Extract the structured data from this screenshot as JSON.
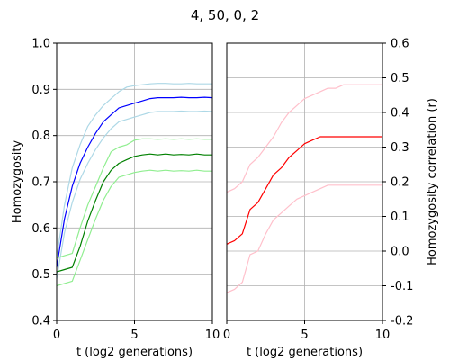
{
  "title": "4, 50, 0, 2",
  "chart_data": [
    {
      "type": "line",
      "xlabel": "t (log2 generations)",
      "ylabel": "Homozygosity",
      "xlim": [
        0,
        10
      ],
      "ylim": [
        0.4,
        1.0
      ],
      "x_ticks": [
        0,
        5,
        10
      ],
      "y_ticks": [
        0.4,
        0.5,
        0.6,
        0.7,
        0.8,
        0.9,
        1.0
      ],
      "grid": true,
      "series": [
        {
          "color": "#add8e6",
          "x": [
            0,
            0.5,
            1,
            1.5,
            2,
            2.5,
            3,
            3.5,
            4,
            4.5,
            5,
            5.5,
            6,
            6.5,
            7,
            7.5,
            8,
            8.5,
            9,
            9.5,
            10
          ],
          "y": [
            0.535,
            0.65,
            0.73,
            0.78,
            0.82,
            0.845,
            0.865,
            0.88,
            0.895,
            0.905,
            0.908,
            0.91,
            0.912,
            0.913,
            0.913,
            0.912,
            0.912,
            0.913,
            0.912,
            0.912,
            0.912
          ]
        },
        {
          "color": "#0000ff",
          "x": [
            0,
            0.5,
            1,
            1.5,
            2,
            2.5,
            3,
            3.5,
            4,
            4.5,
            5,
            5.5,
            6,
            6.5,
            7,
            7.5,
            8,
            8.5,
            9,
            9.5,
            10
          ],
          "y": [
            0.515,
            0.62,
            0.69,
            0.74,
            0.775,
            0.805,
            0.83,
            0.845,
            0.86,
            0.865,
            0.87,
            0.875,
            0.88,
            0.882,
            0.882,
            0.882,
            0.883,
            0.882,
            0.882,
            0.883,
            0.882
          ]
        },
        {
          "color": "#add8e6",
          "x": [
            0,
            0.5,
            1,
            1.5,
            2,
            2.5,
            3,
            3.5,
            4,
            4.5,
            5,
            5.5,
            6,
            6.5,
            7,
            7.5,
            8,
            8.5,
            9,
            9.5,
            10
          ],
          "y": [
            0.49,
            0.59,
            0.655,
            0.705,
            0.74,
            0.77,
            0.795,
            0.815,
            0.83,
            0.835,
            0.84,
            0.845,
            0.85,
            0.852,
            0.852,
            0.852,
            0.853,
            0.852,
            0.852,
            0.853,
            0.852
          ]
        },
        {
          "color": "#90ee90",
          "x": [
            0,
            0.5,
            1,
            1.5,
            2,
            2.5,
            3,
            3.5,
            4,
            4.5,
            5,
            5.5,
            6,
            6.5,
            7,
            7.5,
            8,
            8.5,
            9,
            9.5,
            10
          ],
          "y": [
            0.535,
            0.54,
            0.545,
            0.6,
            0.65,
            0.69,
            0.73,
            0.765,
            0.775,
            0.78,
            0.79,
            0.793,
            0.793,
            0.792,
            0.793,
            0.792,
            0.793,
            0.792,
            0.793,
            0.792,
            0.792
          ]
        },
        {
          "color": "#008000",
          "x": [
            0,
            0.5,
            1,
            1.5,
            2,
            2.5,
            3,
            3.5,
            4,
            4.5,
            5,
            5.5,
            6,
            6.5,
            7,
            7.5,
            8,
            8.5,
            9,
            9.5,
            10
          ],
          "y": [
            0.505,
            0.51,
            0.515,
            0.56,
            0.615,
            0.66,
            0.7,
            0.725,
            0.74,
            0.748,
            0.755,
            0.758,
            0.76,
            0.758,
            0.76,
            0.758,
            0.759,
            0.758,
            0.76,
            0.758,
            0.758
          ]
        },
        {
          "color": "#90ee90",
          "x": [
            0,
            0.5,
            1,
            1.5,
            2,
            2.5,
            3,
            3.5,
            4,
            4.5,
            5,
            5.5,
            6,
            6.5,
            7,
            7.5,
            8,
            8.5,
            9,
            9.5,
            10
          ],
          "y": [
            0.475,
            0.48,
            0.485,
            0.53,
            0.575,
            0.62,
            0.66,
            0.69,
            0.71,
            0.715,
            0.72,
            0.723,
            0.725,
            0.723,
            0.725,
            0.723,
            0.724,
            0.723,
            0.725,
            0.723,
            0.723
          ]
        }
      ]
    },
    {
      "type": "line",
      "xlabel": "t (log2 generations)",
      "ylabel": "Homozygosity correlation (r)",
      "xlim": [
        0,
        10
      ],
      "ylim": [
        -0.2,
        0.6
      ],
      "x_ticks": [
        0,
        5,
        10
      ],
      "y_ticks": [
        -0.2,
        -0.1,
        0.0,
        0.1,
        0.2,
        0.3,
        0.4,
        0.5,
        0.6
      ],
      "grid": true,
      "series": [
        {
          "color": "#ffc0cb",
          "x": [
            0,
            0.5,
            1,
            1.5,
            2,
            2.5,
            3,
            3.5,
            4,
            4.5,
            5,
            5.5,
            6,
            6.5,
            7,
            7.5,
            8,
            8.5,
            9,
            9.5,
            10
          ],
          "y": [
            0.17,
            0.18,
            0.2,
            0.25,
            0.27,
            0.3,
            0.33,
            0.37,
            0.4,
            0.42,
            0.44,
            0.45,
            0.46,
            0.47,
            0.47,
            0.48,
            0.48,
            0.48,
            0.48,
            0.48,
            0.48
          ]
        },
        {
          "color": "#ff0000",
          "x": [
            0,
            0.5,
            1,
            1.5,
            2,
            2.5,
            3,
            3.5,
            4,
            4.5,
            5,
            5.5,
            6,
            6.5,
            7,
            7.5,
            8,
            8.5,
            9,
            9.5,
            10
          ],
          "y": [
            0.02,
            0.03,
            0.05,
            0.12,
            0.14,
            0.18,
            0.22,
            0.24,
            0.27,
            0.29,
            0.31,
            0.32,
            0.33,
            0.33,
            0.33,
            0.33,
            0.33,
            0.33,
            0.33,
            0.33,
            0.33
          ]
        },
        {
          "color": "#ffc0cb",
          "x": [
            0,
            0.5,
            1,
            1.5,
            2,
            2.5,
            3,
            3.5,
            4,
            4.5,
            5,
            5.5,
            6,
            6.5,
            7,
            7.5,
            8,
            8.5,
            9,
            9.5,
            10
          ],
          "y": [
            -0.12,
            -0.11,
            -0.09,
            -0.01,
            0.0,
            0.05,
            0.09,
            0.11,
            0.13,
            0.15,
            0.16,
            0.17,
            0.18,
            0.19,
            0.19,
            0.19,
            0.19,
            0.19,
            0.19,
            0.19,
            0.19
          ]
        }
      ]
    }
  ]
}
